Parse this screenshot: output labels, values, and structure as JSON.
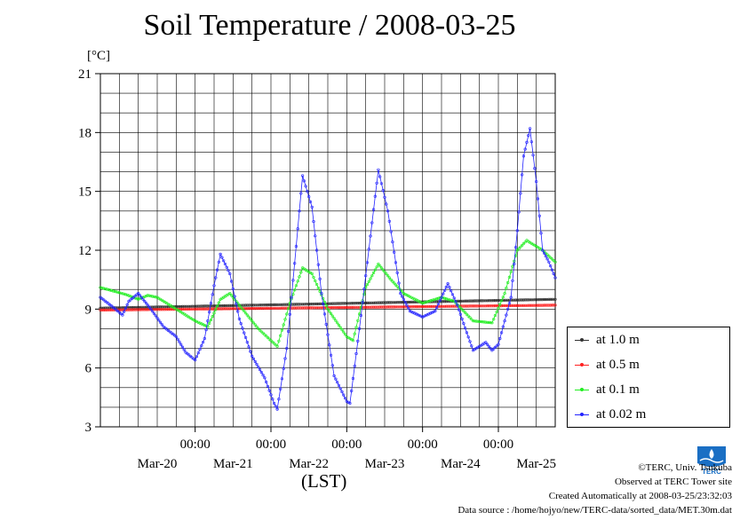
{
  "title": "Soil Temperature / 2008-03-25",
  "unit_label": "[°C]",
  "x_axis_label": "(LST)",
  "legend": [
    {
      "label": "at 1.0 m",
      "color": "#333333"
    },
    {
      "label": "at 0.5 m",
      "color": "#ff2020"
    },
    {
      "label": "at 0.1 m",
      "color": "#22ee22"
    },
    {
      "label": "at 0.02 m",
      "color": "#2222ff"
    }
  ],
  "credits": {
    "copyright": "©TERC, Univ. Tsukuba",
    "observed": "Observed at TERC Tower site",
    "created": "Created Automatically at 2008-03-25/23:32:03",
    "source": "Data source : /home/hojyo/new/TERC-data/sorted_data/MET.30m.dat"
  },
  "logo_text": "TERC",
  "chart_data": {
    "type": "line",
    "title": "Soil Temperature / 2008-03-25",
    "ylabel": "[°C]",
    "xlabel": "(LST)",
    "ylim": [
      3,
      21
    ],
    "yticks": [
      3,
      6,
      9,
      12,
      15,
      18,
      21
    ],
    "xlim": [
      0,
      144
    ],
    "xlim_unit": "hours from 2008-03-19 18:00",
    "time_tick_labels": [
      "00:00",
      "00:00",
      "00:00",
      "00:00",
      "00:00"
    ],
    "date_labels": [
      "Mar-20",
      "Mar-21",
      "Mar-22",
      "Mar-23",
      "Mar-24",
      "Mar-25"
    ],
    "grid": true,
    "legend_position": "right",
    "series": [
      {
        "name": "at 1.0 m",
        "color": "#333333",
        "points": [
          [
            0,
            9.05
          ],
          [
            144,
            9.5
          ]
        ]
      },
      {
        "name": "at 0.5 m",
        "color": "#ff2020",
        "points": [
          [
            0,
            8.95
          ],
          [
            144,
            9.2
          ]
        ]
      },
      {
        "name": "at 0.1 m",
        "color": "#22ee22",
        "points": [
          [
            0,
            10.1
          ],
          [
            8,
            9.75
          ],
          [
            12,
            9.5
          ],
          [
            15,
            9.7
          ],
          [
            18,
            9.6
          ],
          [
            24,
            9.0
          ],
          [
            30,
            8.4
          ],
          [
            34,
            8.1
          ],
          [
            38,
            9.5
          ],
          [
            41,
            9.8
          ],
          [
            44,
            9.2
          ],
          [
            50,
            8.0
          ],
          [
            56,
            7.1
          ],
          [
            60,
            9.3
          ],
          [
            64,
            11.1
          ],
          [
            67,
            10.8
          ],
          [
            72,
            9.0
          ],
          [
            78,
            7.6
          ],
          [
            80,
            7.4
          ],
          [
            84,
            10.1
          ],
          [
            88,
            11.3
          ],
          [
            92,
            10.5
          ],
          [
            96,
            9.8
          ],
          [
            102,
            9.3
          ],
          [
            108,
            9.6
          ],
          [
            112,
            9.4
          ],
          [
            118,
            8.4
          ],
          [
            124,
            8.3
          ],
          [
            128,
            9.8
          ],
          [
            132,
            12.0
          ],
          [
            135,
            12.5
          ],
          [
            140,
            12.0
          ],
          [
            144,
            11.4
          ]
        ]
      },
      {
        "name": "at 0.02 m",
        "color": "#2222ff",
        "points": [
          [
            0,
            9.6
          ],
          [
            4,
            9.1
          ],
          [
            7,
            8.7
          ],
          [
            9,
            9.4
          ],
          [
            12,
            9.8
          ],
          [
            16,
            9.0
          ],
          [
            20,
            8.1
          ],
          [
            24,
            7.6
          ],
          [
            27,
            6.8
          ],
          [
            30,
            6.4
          ],
          [
            33,
            7.5
          ],
          [
            36,
            10.2
          ],
          [
            38,
            11.8
          ],
          [
            41,
            10.8
          ],
          [
            44,
            8.5
          ],
          [
            48,
            6.6
          ],
          [
            52,
            5.5
          ],
          [
            55,
            4.2
          ],
          [
            56,
            3.9
          ],
          [
            59,
            7.0
          ],
          [
            62,
            12.2
          ],
          [
            64,
            15.8
          ],
          [
            67,
            14.2
          ],
          [
            70,
            9.8
          ],
          [
            74,
            5.6
          ],
          [
            78,
            4.3
          ],
          [
            79,
            4.2
          ],
          [
            82,
            8.0
          ],
          [
            86,
            13.4
          ],
          [
            88,
            16.1
          ],
          [
            91,
            14.0
          ],
          [
            95,
            9.8
          ],
          [
            98,
            8.9
          ],
          [
            102,
            8.6
          ],
          [
            106,
            8.9
          ],
          [
            110,
            10.3
          ],
          [
            113,
            9.2
          ],
          [
            116,
            7.8
          ],
          [
            118,
            6.9
          ],
          [
            120,
            7.1
          ],
          [
            122,
            7.3
          ],
          [
            124,
            6.9
          ],
          [
            126,
            7.2
          ],
          [
            130,
            9.6
          ],
          [
            132,
            13.0
          ],
          [
            134,
            16.8
          ],
          [
            136,
            18.2
          ],
          [
            138,
            15.5
          ],
          [
            140,
            12.0
          ],
          [
            142,
            11.4
          ],
          [
            144,
            10.6
          ]
        ]
      }
    ]
  }
}
